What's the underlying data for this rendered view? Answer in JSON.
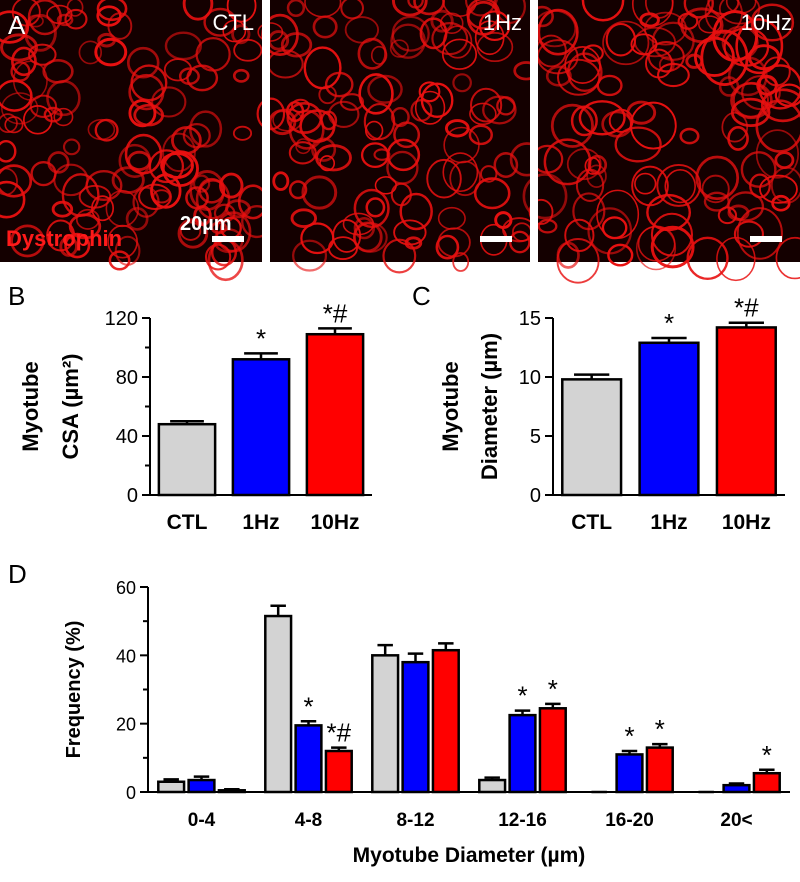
{
  "panel_a": {
    "label": "A",
    "images": [
      "CTL",
      "1Hz",
      "10Hz"
    ],
    "stain": "Dystrophin",
    "scale": "20µm"
  },
  "chart_data": [
    {
      "type": "bar",
      "panel_label": "B",
      "ylabel": [
        "Myotube",
        "CSA (µm²)"
      ],
      "categories": [
        "CTL",
        "1Hz",
        "10Hz"
      ],
      "values": [
        48,
        92,
        109
      ],
      "errors": [
        2,
        4,
        4
      ],
      "colors": [
        "#d3d3d3",
        "#0000ff",
        "#ff0000"
      ],
      "value_annotations": [
        null,
        "*",
        "*#"
      ],
      "ylim": [
        0,
        120
      ],
      "yticks": [
        0,
        40,
        80,
        120
      ],
      "yminor": [
        20,
        60,
        100
      ]
    },
    {
      "type": "bar",
      "panel_label": "C",
      "ylabel": [
        "Myotube",
        "Diameter (µm)"
      ],
      "categories": [
        "CTL",
        "1Hz",
        "10Hz"
      ],
      "values": [
        9.8,
        12.9,
        14.2
      ],
      "errors": [
        0.4,
        0.4,
        0.4
      ],
      "colors": [
        "#d3d3d3",
        "#0000ff",
        "#ff0000"
      ],
      "value_annotations": [
        null,
        "*",
        "*#"
      ],
      "ylim": [
        0,
        15
      ],
      "yticks": [
        0,
        5,
        10,
        15
      ]
    },
    {
      "type": "grouped-bar",
      "panel_label": "D",
      "ylabel": [
        "Frequency (%)"
      ],
      "xlabel": "Myotube Diameter (µm)",
      "categories": [
        "0-4",
        "4-8",
        "8-12",
        "12-16",
        "16-20",
        "20<"
      ],
      "series": [
        {
          "color": "#d3d3d3",
          "values": [
            3,
            51.5,
            40,
            3.5,
            0,
            0
          ],
          "errors": [
            0.7,
            3,
            3,
            0.7,
            0,
            0
          ],
          "value_annotations": [
            null,
            null,
            null,
            null,
            null,
            null
          ]
        },
        {
          "color": "#0000ff",
          "values": [
            3.5,
            19.5,
            38,
            22.5,
            11,
            2
          ],
          "errors": [
            1,
            1.2,
            2.5,
            1.3,
            1,
            0.5
          ],
          "value_annotations": [
            null,
            "*",
            null,
            "*",
            "*",
            null
          ]
        },
        {
          "color": "#ff0000",
          "values": [
            0.5,
            12,
            41.5,
            24.5,
            13,
            5.5
          ],
          "errors": [
            0.3,
            1,
            2,
            1.3,
            1,
            1
          ],
          "value_annotations": [
            null,
            "*#",
            null,
            "*",
            "*",
            "*"
          ]
        }
      ],
      "ylim": [
        0,
        60
      ],
      "yticks": [
        0,
        20,
        40,
        60
      ],
      "yminor": [
        10,
        30,
        50
      ]
    }
  ]
}
